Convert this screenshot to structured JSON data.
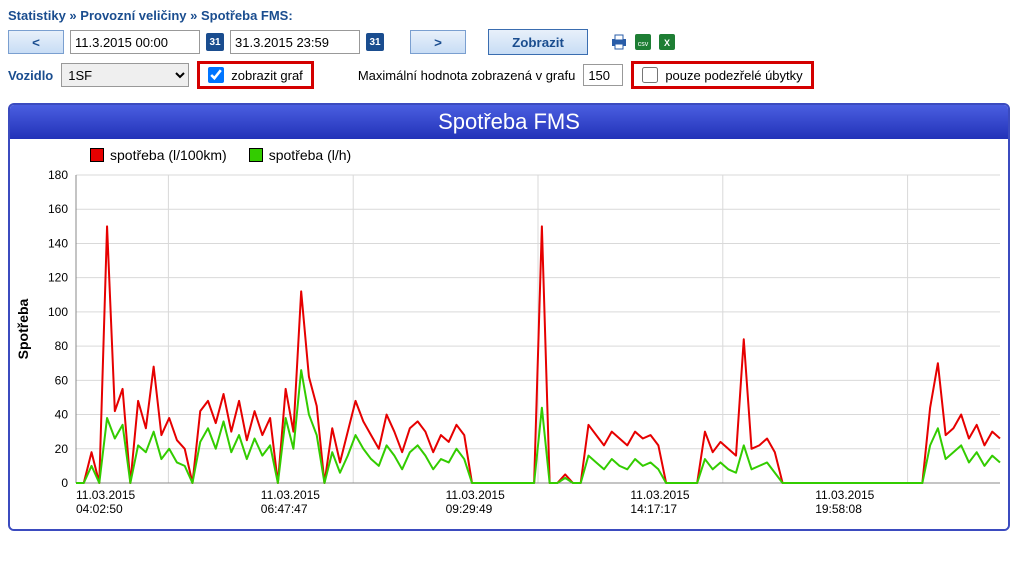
{
  "breadcrumb": {
    "a": "Statistiky",
    "b": "Provozní veličiny",
    "c": "Spotřeba FMS:"
  },
  "nav": {
    "prev": "<",
    "next": ">"
  },
  "dates": {
    "from": "11.3.2015 00:00",
    "to": "31.3.2015 23:59"
  },
  "cal_glyph": "31",
  "show_label": "Zobrazit",
  "vehicle_label": "Vozidlo",
  "vehicle_value": "1SF",
  "chk_graph_label": "zobrazit graf",
  "max_label": "Maximální hodnota zobrazená v grafu",
  "max_value": "150",
  "chk_susp_label": "pouze podezřelé úbytky",
  "chart": {
    "title": "Spotřeba FMS",
    "ylabel": "Spotřeba",
    "legend": [
      {
        "label": "spotřeba (l/100km)",
        "color": "#e60000"
      },
      {
        "label": "spotřeba (l/h)",
        "color": "#33cc00"
      }
    ],
    "ylim": [
      0,
      180
    ],
    "ytick_step": 20,
    "yticks": [
      0,
      20,
      40,
      60,
      80,
      100,
      120,
      140,
      160,
      180
    ],
    "xticks": [
      "11.03.2015",
      "04:02:50",
      "11.03.2015",
      "06:47:47",
      "11.03.2015",
      "09:29:49",
      "11.03.2015",
      "14:17:17",
      "11.03.2015",
      "19:58:08"
    ],
    "grid_color": "#d9d9d9",
    "background": "#ffffff",
    "x_count": 120,
    "series": [
      {
        "color": "#e60000",
        "width": 2,
        "values": [
          0,
          0,
          18,
          0,
          150,
          42,
          55,
          0,
          48,
          32,
          68,
          28,
          38,
          25,
          20,
          0,
          42,
          48,
          35,
          52,
          30,
          48,
          25,
          42,
          28,
          38,
          0,
          55,
          30,
          112,
          62,
          45,
          0,
          32,
          12,
          30,
          48,
          36,
          28,
          20,
          40,
          30,
          18,
          32,
          36,
          30,
          18,
          28,
          24,
          34,
          28,
          0,
          0,
          0,
          0,
          0,
          0,
          0,
          0,
          0,
          150,
          0,
          0,
          5,
          0,
          0,
          34,
          28,
          22,
          30,
          26,
          22,
          30,
          26,
          28,
          22,
          0,
          0,
          0,
          0,
          0,
          30,
          18,
          24,
          20,
          16,
          84,
          20,
          22,
          26,
          18,
          0,
          0,
          0,
          0,
          0,
          0,
          0,
          0,
          0,
          0,
          0,
          0,
          0,
          0,
          0,
          0,
          0,
          0,
          0,
          44,
          70,
          28,
          32,
          40,
          26,
          34,
          22,
          30,
          26
        ]
      },
      {
        "color": "#33cc00",
        "width": 2,
        "values": [
          0,
          0,
          10,
          0,
          38,
          26,
          34,
          0,
          22,
          18,
          30,
          14,
          20,
          12,
          10,
          0,
          24,
          32,
          20,
          36,
          18,
          28,
          14,
          26,
          16,
          22,
          0,
          38,
          20,
          66,
          40,
          28,
          0,
          18,
          6,
          16,
          28,
          20,
          14,
          10,
          22,
          16,
          8,
          18,
          22,
          16,
          8,
          14,
          12,
          20,
          14,
          0,
          0,
          0,
          0,
          0,
          0,
          0,
          0,
          0,
          44,
          0,
          0,
          3,
          0,
          0,
          16,
          12,
          8,
          14,
          10,
          8,
          14,
          10,
          12,
          8,
          0,
          0,
          0,
          0,
          0,
          14,
          8,
          12,
          8,
          6,
          22,
          8,
          10,
          12,
          6,
          0,
          0,
          0,
          0,
          0,
          0,
          0,
          0,
          0,
          0,
          0,
          0,
          0,
          0,
          0,
          0,
          0,
          0,
          0,
          22,
          32,
          14,
          18,
          22,
          12,
          18,
          10,
          16,
          12
        ]
      }
    ]
  }
}
